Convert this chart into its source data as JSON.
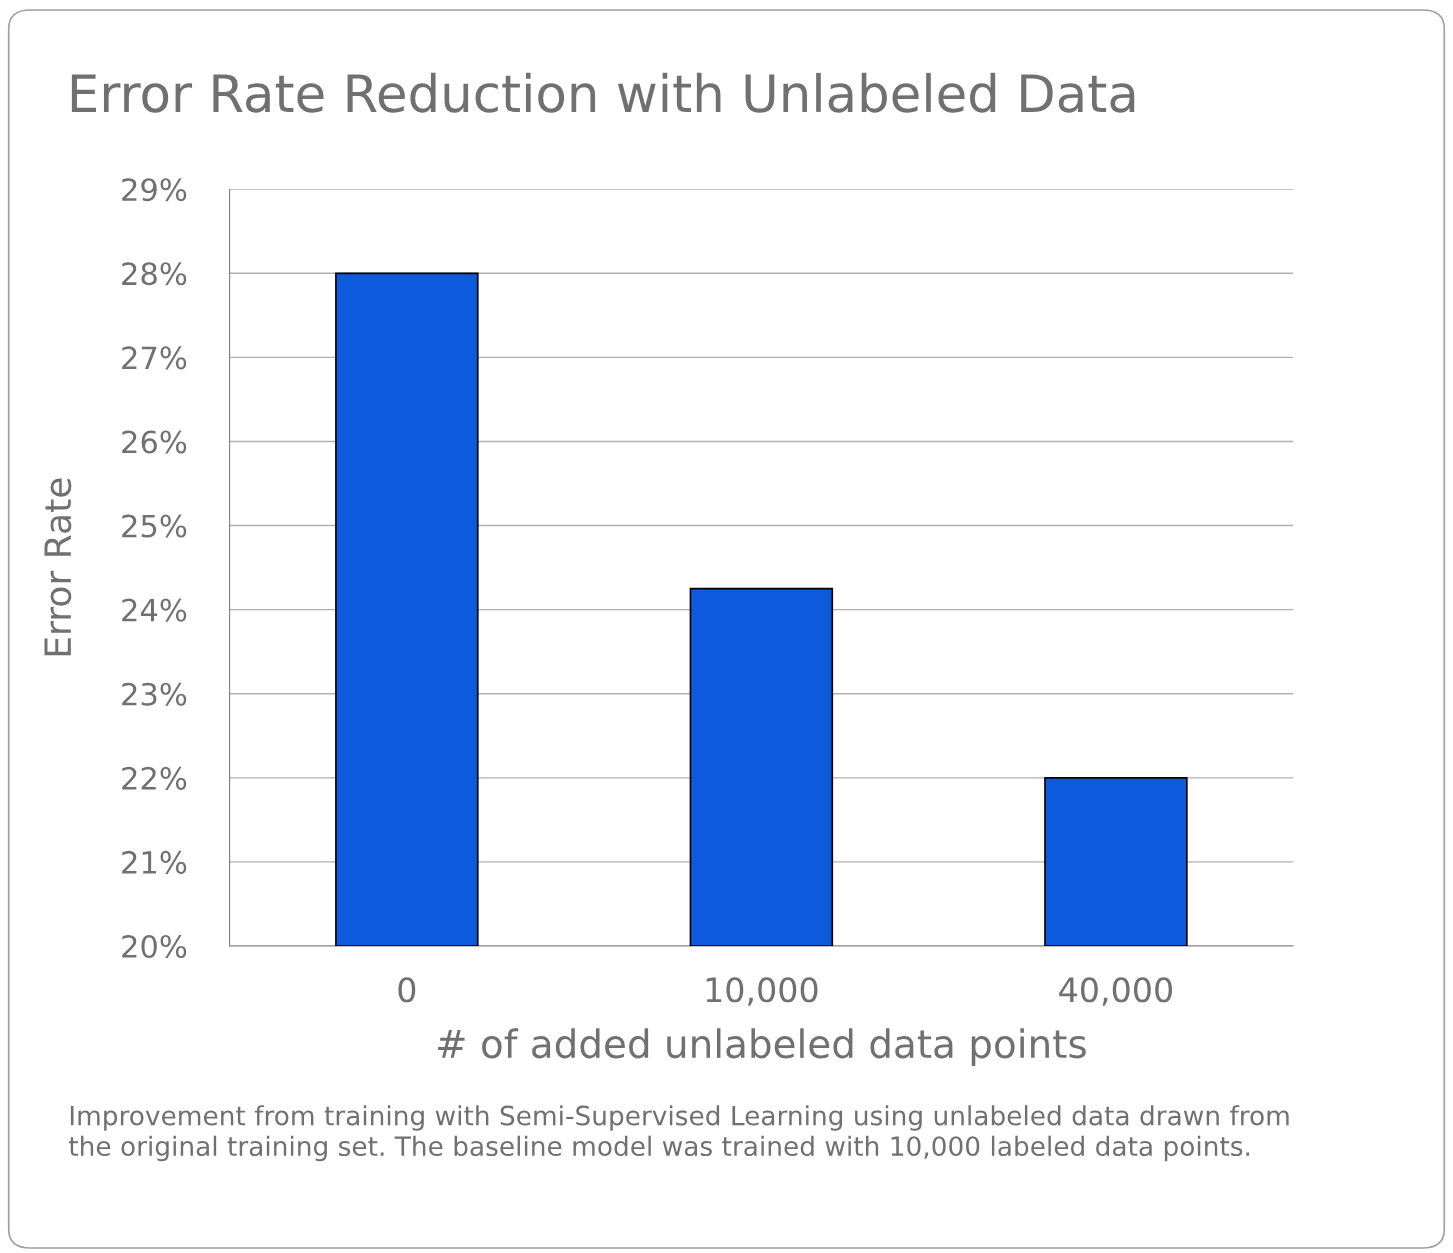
{
  "chart_data": {
    "type": "bar",
    "title": "Error Rate Reduction with Unlabeled Data",
    "xlabel": "# of added unlabeled data points",
    "ylabel": "Error Rate",
    "categories": [
      "0",
      "10,000",
      "40,000"
    ],
    "values": [
      28,
      24.25,
      22
    ],
    "color": "#0d5bdc",
    "ylim": [
      20,
      29
    ],
    "yticks": [
      {
        "value": 20,
        "label": "20%"
      },
      {
        "value": 21,
        "label": "21%"
      },
      {
        "value": 22,
        "label": "22%"
      },
      {
        "value": 23,
        "label": "23%"
      },
      {
        "value": 24,
        "label": "24%"
      },
      {
        "value": 25,
        "label": "25%"
      },
      {
        "value": 26,
        "label": "26%"
      },
      {
        "value": 27,
        "label": "27%"
      },
      {
        "value": 28,
        "label": "28%"
      },
      {
        "value": 29,
        "label": "29%"
      }
    ],
    "grid": "y",
    "annotations": [
      "Improvement from training with Semi-Supervised Learning using unlabeled data drawn from the original training set. The baseline model was trained with 10,000 labeled data points."
    ]
  }
}
